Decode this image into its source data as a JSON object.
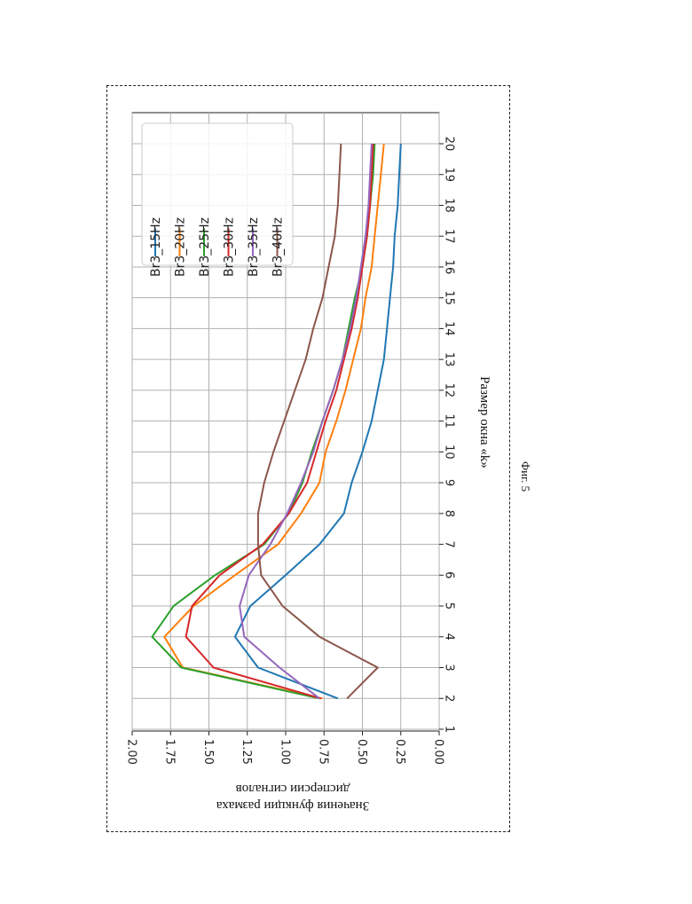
{
  "chart_data": {
    "type": "line",
    "x": [
      2,
      3,
      4,
      5,
      6,
      7,
      8,
      9,
      10,
      11,
      12,
      13,
      14,
      15,
      16,
      17,
      18,
      19,
      20
    ],
    "x_ticks": [
      1,
      2,
      3,
      4,
      5,
      6,
      7,
      8,
      9,
      10,
      11,
      12,
      13,
      14,
      15,
      16,
      17,
      18,
      19,
      20
    ],
    "y_ticks": [
      "0.00",
      "0.25",
      "0.50",
      "0.75",
      "1.00",
      "1.25",
      "1.50",
      "1.75",
      "2.00"
    ],
    "ylim": [
      0,
      2.0
    ],
    "xlim": [
      1,
      20
    ],
    "xlabel": "Размер окна «k»",
    "ylabel_line1": "Значения функции размаха",
    "ylabel_line2": "дисперсии сигналов",
    "grid": true,
    "legend_position": "upper right",
    "series": [
      {
        "name": "Br3_15Hz",
        "color": "#1f77b4",
        "values": [
          0.66,
          1.18,
          1.33,
          1.23,
          1.0,
          0.78,
          0.62,
          0.57,
          0.5,
          0.44,
          0.4,
          0.36,
          0.34,
          0.32,
          0.3,
          0.29,
          0.27,
          0.26,
          0.25
        ]
      },
      {
        "name": "Br3_20Hz",
        "color": "#ff7f0e",
        "values": [
          0.76,
          1.67,
          1.79,
          1.6,
          1.33,
          1.05,
          0.9,
          0.78,
          0.74,
          0.67,
          0.61,
          0.56,
          0.51,
          0.48,
          0.44,
          0.42,
          0.4,
          0.38,
          0.36
        ]
      },
      {
        "name": "Br3_25Hz",
        "color": "#2ca02c",
        "values": [
          0.78,
          1.68,
          1.87,
          1.73,
          1.46,
          1.14,
          0.98,
          0.89,
          0.83,
          0.76,
          0.69,
          0.63,
          0.59,
          0.55,
          0.5,
          0.47,
          0.45,
          0.43,
          0.42
        ]
      },
      {
        "name": "Br3_30Hz",
        "color": "#d62728",
        "values": [
          0.77,
          1.47,
          1.65,
          1.61,
          1.43,
          1.15,
          0.98,
          0.86,
          0.8,
          0.74,
          0.67,
          0.62,
          0.57,
          0.53,
          0.5,
          0.47,
          0.45,
          0.44,
          0.43
        ]
      },
      {
        "name": "Br3_35Hz",
        "color": "#9467bd",
        "values": [
          0.78,
          1.04,
          1.27,
          1.3,
          1.24,
          1.1,
          0.99,
          0.9,
          0.82,
          0.76,
          0.69,
          0.63,
          0.58,
          0.54,
          0.51,
          0.48,
          0.46,
          0.45,
          0.44
        ]
      },
      {
        "name": "Br3_40Hz",
        "color": "#8c564b",
        "values": [
          0.6,
          0.4,
          0.78,
          1.02,
          1.16,
          1.18,
          1.18,
          1.14,
          1.08,
          1.01,
          0.94,
          0.87,
          0.82,
          0.76,
          0.72,
          0.68,
          0.66,
          0.65,
          0.64
        ]
      }
    ]
  },
  "caption": "Фиг. 5"
}
